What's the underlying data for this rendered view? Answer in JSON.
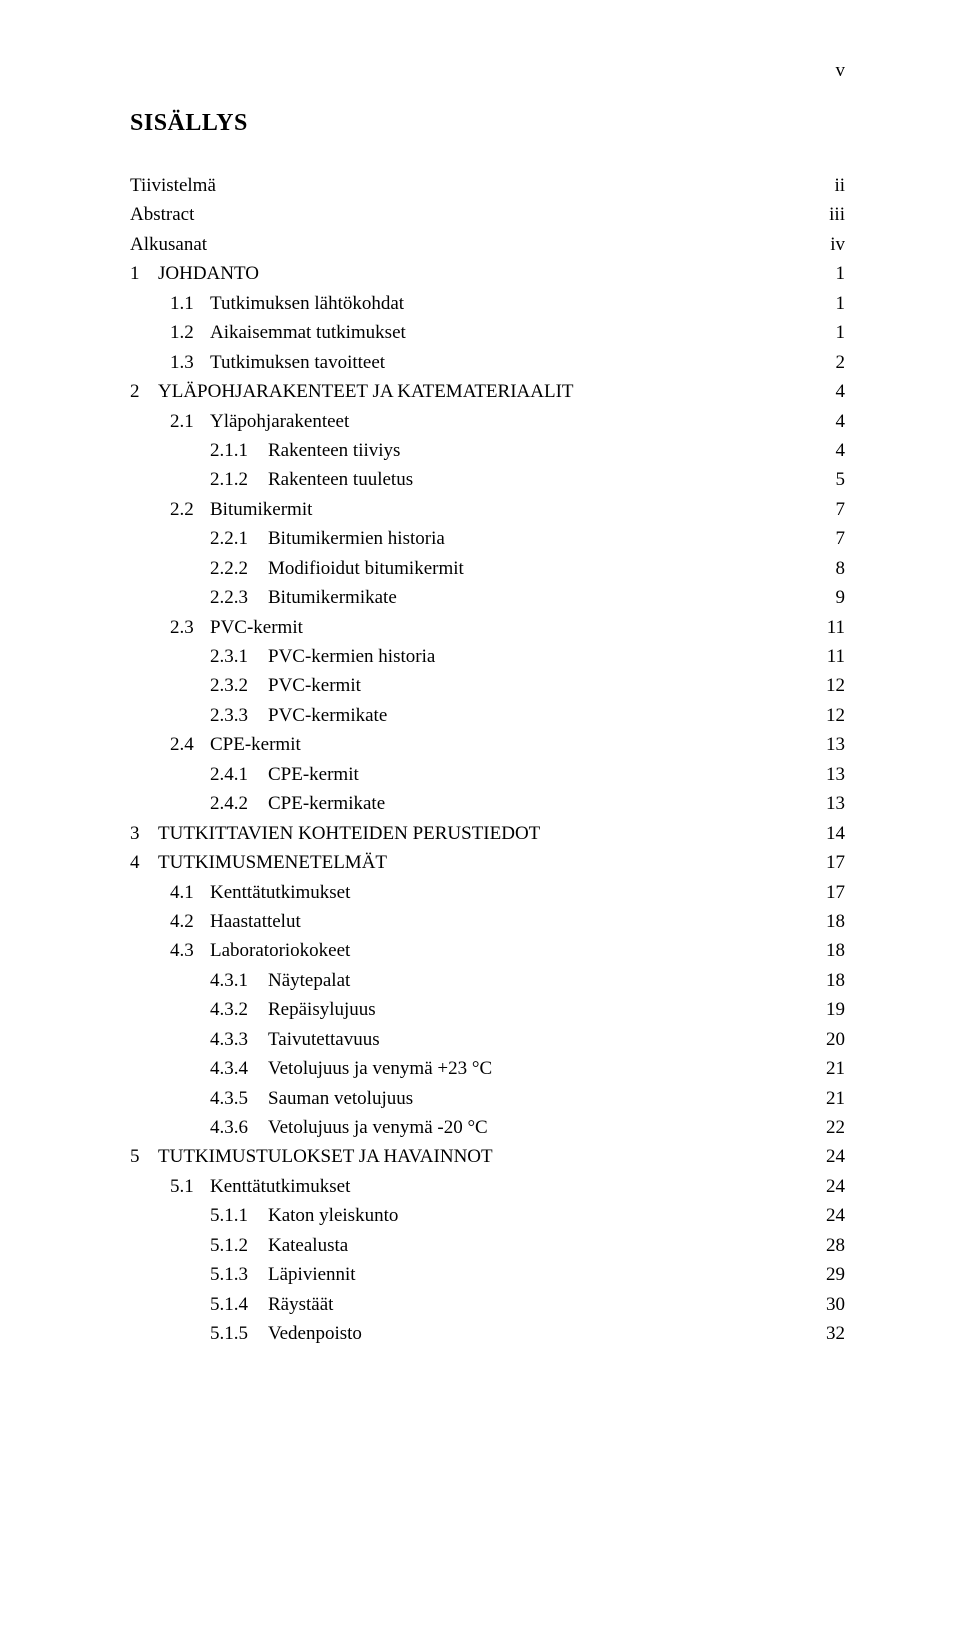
{
  "page_number_roman": "v",
  "title": "SISÄLLYS",
  "background_color": "#ffffff",
  "text_color": "#000000",
  "font_family": "Times New Roman",
  "base_font_size_pt": 14,
  "entries": [
    {
      "level": 0,
      "num": "",
      "text": "Tiivistelmä",
      "page": "ii"
    },
    {
      "level": 0,
      "num": "",
      "text": "Abstract",
      "page": "iii"
    },
    {
      "level": 0,
      "num": "",
      "text": "Alkusanat",
      "page": "iv"
    },
    {
      "level": 1,
      "num": "1",
      "text": "JOHDANTO",
      "page": "1"
    },
    {
      "level": 2,
      "num": "1.1",
      "text": "Tutkimuksen lähtökohdat",
      "page": "1"
    },
    {
      "level": 2,
      "num": "1.2",
      "text": "Aikaisemmat tutkimukset",
      "page": "1"
    },
    {
      "level": 2,
      "num": "1.3",
      "text": "Tutkimuksen tavoitteet",
      "page": "2"
    },
    {
      "level": 1,
      "num": "2",
      "text": "YLÄPOHJARAKENTEET JA KATEMATERIAALIT",
      "page": "4"
    },
    {
      "level": 2,
      "num": "2.1",
      "text": "Yläpohjarakenteet",
      "page": "4"
    },
    {
      "level": 3,
      "num": "2.1.1",
      "text": "Rakenteen tiiviys",
      "page": "4"
    },
    {
      "level": 3,
      "num": "2.1.2",
      "text": "Rakenteen tuuletus",
      "page": "5"
    },
    {
      "level": 2,
      "num": "2.2",
      "text": "Bitumikermit",
      "page": "7"
    },
    {
      "level": 3,
      "num": "2.2.1",
      "text": "Bitumikermien historia",
      "page": "7"
    },
    {
      "level": 3,
      "num": "2.2.2",
      "text": "Modifioidut bitumikermit",
      "page": "8"
    },
    {
      "level": 3,
      "num": "2.2.3",
      "text": "Bitumikermikate",
      "page": "9"
    },
    {
      "level": 2,
      "num": "2.3",
      "text": "PVC-kermit",
      "page": "11"
    },
    {
      "level": 3,
      "num": "2.3.1",
      "text": "PVC-kermien historia",
      "page": "11"
    },
    {
      "level": 3,
      "num": "2.3.2",
      "text": "PVC-kermit",
      "page": "12"
    },
    {
      "level": 3,
      "num": "2.3.3",
      "text": "PVC-kermikate",
      "page": "12"
    },
    {
      "level": 2,
      "num": "2.4",
      "text": "CPE-kermit",
      "page": "13"
    },
    {
      "level": 3,
      "num": "2.4.1",
      "text": "CPE-kermit",
      "page": "13"
    },
    {
      "level": 3,
      "num": "2.4.2",
      "text": "CPE-kermikate",
      "page": "13"
    },
    {
      "level": 1,
      "num": "3",
      "text": "TUTKITTAVIEN KOHTEIDEN PERUSTIEDOT",
      "page": "14"
    },
    {
      "level": 1,
      "num": "4",
      "text": "TUTKIMUSMENETELMÄT",
      "page": "17"
    },
    {
      "level": 2,
      "num": "4.1",
      "text": "Kenttätutkimukset",
      "page": "17"
    },
    {
      "level": 2,
      "num": "4.2",
      "text": "Haastattelut",
      "page": "18"
    },
    {
      "level": 2,
      "num": "4.3",
      "text": "Laboratoriokokeet",
      "page": "18"
    },
    {
      "level": 3,
      "num": "4.3.1",
      "text": "Näytepalat",
      "page": "18"
    },
    {
      "level": 3,
      "num": "4.3.2",
      "text": "Repäisylujuus",
      "page": "19"
    },
    {
      "level": 3,
      "num": "4.3.3",
      "text": "Taivutettavuus",
      "page": "20"
    },
    {
      "level": 3,
      "num": "4.3.4",
      "text": "Vetolujuus ja venymä +23 °C",
      "page": "21"
    },
    {
      "level": 3,
      "num": "4.3.5",
      "text": "Sauman vetolujuus",
      "page": "21"
    },
    {
      "level": 3,
      "num": "4.3.6",
      "text": "Vetolujuus ja venymä -20 °C",
      "page": "22"
    },
    {
      "level": 1,
      "num": "5",
      "text": "TUTKIMUSTULOKSET JA HAVAINNOT",
      "page": "24"
    },
    {
      "level": 2,
      "num": "5.1",
      "text": "Kenttätutkimukset",
      "page": "24"
    },
    {
      "level": 3,
      "num": "5.1.1",
      "text": "Katon yleiskunto",
      "page": "24"
    },
    {
      "level": 3,
      "num": "5.1.2",
      "text": "Katealusta",
      "page": "28"
    },
    {
      "level": 3,
      "num": "5.1.3",
      "text": "Läpiviennit",
      "page": "29"
    },
    {
      "level": 3,
      "num": "5.1.4",
      "text": "Räystäät",
      "page": "30"
    },
    {
      "level": 3,
      "num": "5.1.5",
      "text": "Vedenpoisto",
      "page": "32"
    }
  ]
}
